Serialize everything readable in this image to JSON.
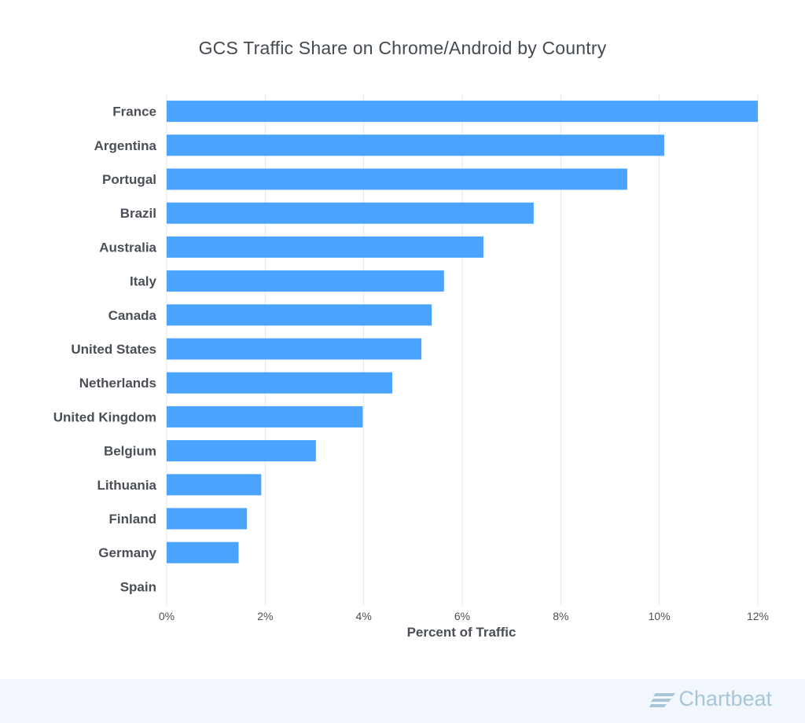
{
  "title": "GCS Traffic Share on Chrome/Android by Country",
  "brand": {
    "name": "Chartbeat",
    "color": "#a7c6d8",
    "icon": "chartbeat-logo-icon"
  },
  "colors": {
    "bar": "#4aa3ff",
    "grid": "#e6e6e6",
    "text": "#4a4f57",
    "footer_bg": "#f1f7fc"
  },
  "chart_data": {
    "type": "bar",
    "orientation": "horizontal",
    "title": "GCS Traffic Share on Chrome/Android by Country",
    "xlabel": "Percent of Traffic",
    "ylabel": "",
    "categories": [
      "France",
      "Argentina",
      "Portugal",
      "Brazil",
      "Australia",
      "Italy",
      "Canada",
      "United States",
      "Netherlands",
      "United Kingdom",
      "Belgium",
      "Lithuania",
      "Finland",
      "Germany",
      "Spain"
    ],
    "values": [
      12.0,
      10.1,
      9.35,
      7.45,
      6.43,
      5.63,
      5.38,
      5.17,
      4.58,
      3.98,
      3.03,
      1.92,
      1.63,
      1.46,
      0.0
    ],
    "xlim": [
      0,
      12
    ],
    "xticks": [
      0,
      2,
      4,
      6,
      8,
      10,
      12
    ],
    "xtick_labels": [
      "0%",
      "2%",
      "4%",
      "6%",
      "8%",
      "10%",
      "12%"
    ],
    "grid": "vertical",
    "legend": "none"
  }
}
